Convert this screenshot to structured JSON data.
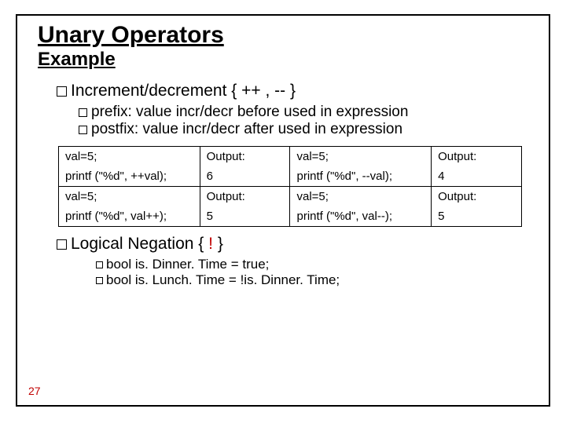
{
  "title": "Unary Operators",
  "subtitle": "Example",
  "incdec": {
    "heading": "Increment/decrement { ++ , -- }",
    "prefix": "prefix: value incr/decr before used in expression",
    "postfix": "postfix: value incr/decr after used in expression"
  },
  "table": {
    "r1c1": "val=5;",
    "r1c2": "Output:",
    "r1c3": "val=5;",
    "r1c4": "Output:",
    "r2c1": "printf (\"%d\", ++val);",
    "r2c2": "6",
    "r2c3": "printf (\"%d\", --val);",
    "r2c4": "4",
    "r3c1": "val=5;",
    "r3c2": "Output:",
    "r3c3": "val=5;",
    "r3c4": "Output:",
    "r4c1": "printf (\"%d\", val++);",
    "r4c2": "5",
    "r4c3": "printf (\"%d\", val--);",
    "r4c4": "5"
  },
  "negation": {
    "heading_pre": "Logical Negation { ",
    "heading_bang": "!",
    "heading_post": " }",
    "line1": "bool is. Dinner. Time = true;",
    "line2": "bool is. Lunch. Time = !is. Dinner. Time;"
  },
  "page": "27"
}
